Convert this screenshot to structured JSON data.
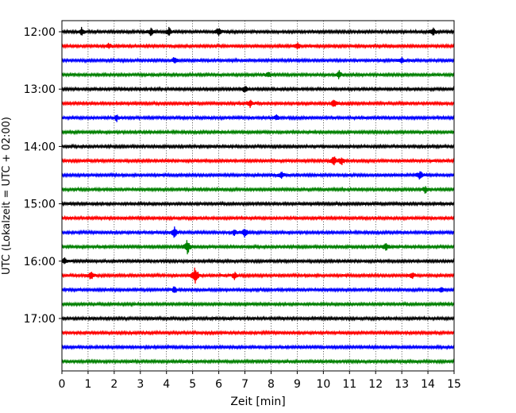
{
  "chart_data": {
    "type": "line",
    "title": "",
    "xlabel": "Zeit  [min]",
    "ylabel": "UTC (Lokalzeit = UTC + 02:00)",
    "xlim": [
      0,
      15
    ],
    "x_ticks": [
      0,
      1,
      2,
      3,
      4,
      5,
      6,
      7,
      8,
      9,
      10,
      11,
      12,
      13,
      14,
      15
    ],
    "x_tick_labels": [
      "0",
      "1",
      "2",
      "3",
      "4",
      "5",
      "6",
      "7",
      "8",
      "9",
      "10",
      "11",
      "12",
      "13",
      "14",
      "15"
    ],
    "y_tick_labels": [
      "12:00",
      "13:00",
      "14:00",
      "15:00",
      "16:00",
      "17:00"
    ],
    "grid": "vertical-dotted",
    "series_colors": [
      "#000000",
      "#ff0000",
      "#0000ff",
      "#008000"
    ],
    "traces": [
      {
        "start": "12:00",
        "color": "#000000"
      },
      {
        "start": "12:15",
        "color": "#ff0000"
      },
      {
        "start": "12:30",
        "color": "#0000ff"
      },
      {
        "start": "12:45",
        "color": "#008000"
      },
      {
        "start": "13:00",
        "color": "#000000"
      },
      {
        "start": "13:15",
        "color": "#ff0000"
      },
      {
        "start": "13:30",
        "color": "#0000ff"
      },
      {
        "start": "13:45",
        "color": "#008000"
      },
      {
        "start": "14:00",
        "color": "#000000"
      },
      {
        "start": "14:15",
        "color": "#ff0000"
      },
      {
        "start": "14:30",
        "color": "#0000ff"
      },
      {
        "start": "14:45",
        "color": "#008000"
      },
      {
        "start": "15:00",
        "color": "#000000"
      },
      {
        "start": "15:15",
        "color": "#ff0000"
      },
      {
        "start": "15:30",
        "color": "#0000ff"
      },
      {
        "start": "15:45",
        "color": "#008000"
      },
      {
        "start": "16:00",
        "color": "#000000"
      },
      {
        "start": "16:15",
        "color": "#ff0000"
      },
      {
        "start": "16:30",
        "color": "#0000ff"
      },
      {
        "start": "16:45",
        "color": "#008000"
      },
      {
        "start": "17:00",
        "color": "#000000"
      },
      {
        "start": "17:15",
        "color": "#ff0000"
      },
      {
        "start": "17:30",
        "color": "#0000ff"
      },
      {
        "start": "17:45",
        "color": "#008000"
      }
    ]
  }
}
